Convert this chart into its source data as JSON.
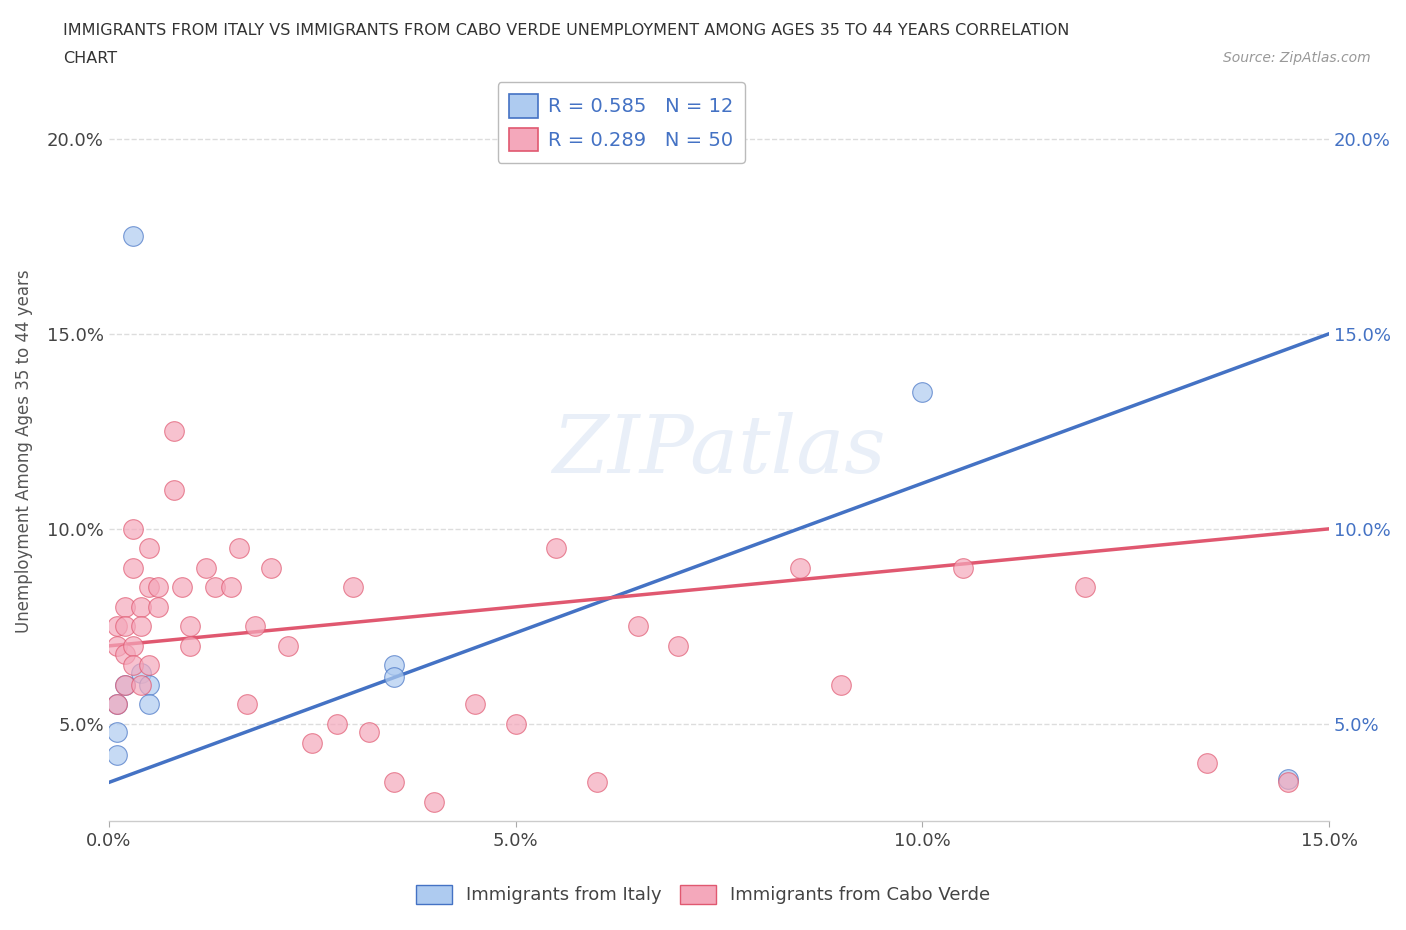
{
  "title_line1": "IMMIGRANTS FROM ITALY VS IMMIGRANTS FROM CABO VERDE UNEMPLOYMENT AMONG AGES 35 TO 44 YEARS CORRELATION",
  "title_line2": "CHART",
  "source": "Source: ZipAtlas.com",
  "ylabel": "Unemployment Among Ages 35 to 44 years",
  "watermark": "ZIPatlas",
  "italy_R": 0.585,
  "italy_N": 12,
  "caboverde_R": 0.289,
  "caboverde_N": 50,
  "italy_color": "#aecbf0",
  "italy_line_color": "#4472c4",
  "caboverde_color": "#f4a8bb",
  "caboverde_line_color": "#e05870",
  "xlim": [
    0,
    0.15
  ],
  "ylim": [
    0.025,
    0.215
  ],
  "xticks": [
    0.0,
    0.05,
    0.1,
    0.15
  ],
  "yticks": [
    0.05,
    0.1,
    0.15,
    0.2
  ],
  "italy_x": [
    0.001,
    0.001,
    0.001,
    0.002,
    0.003,
    0.004,
    0.005,
    0.005,
    0.035,
    0.035,
    0.1,
    0.145
  ],
  "italy_y": [
    0.055,
    0.048,
    0.042,
    0.06,
    0.175,
    0.063,
    0.06,
    0.055,
    0.065,
    0.062,
    0.135,
    0.036
  ],
  "caboverde_x": [
    0.001,
    0.001,
    0.001,
    0.002,
    0.002,
    0.002,
    0.002,
    0.003,
    0.003,
    0.003,
    0.003,
    0.004,
    0.004,
    0.004,
    0.005,
    0.005,
    0.005,
    0.006,
    0.006,
    0.008,
    0.008,
    0.009,
    0.01,
    0.01,
    0.012,
    0.013,
    0.015,
    0.016,
    0.017,
    0.018,
    0.02,
    0.022,
    0.025,
    0.028,
    0.03,
    0.032,
    0.035,
    0.04,
    0.045,
    0.05,
    0.055,
    0.06,
    0.065,
    0.07,
    0.085,
    0.09,
    0.105,
    0.12,
    0.135,
    0.145
  ],
  "caboverde_y": [
    0.07,
    0.075,
    0.055,
    0.08,
    0.06,
    0.075,
    0.068,
    0.1,
    0.09,
    0.07,
    0.065,
    0.08,
    0.075,
    0.06,
    0.095,
    0.085,
    0.065,
    0.085,
    0.08,
    0.125,
    0.11,
    0.085,
    0.075,
    0.07,
    0.09,
    0.085,
    0.085,
    0.095,
    0.055,
    0.075,
    0.09,
    0.07,
    0.045,
    0.05,
    0.085,
    0.048,
    0.035,
    0.03,
    0.055,
    0.05,
    0.095,
    0.035,
    0.075,
    0.07,
    0.09,
    0.06,
    0.09,
    0.085,
    0.04,
    0.035
  ],
  "background_color": "#ffffff",
  "grid_color": "#dddddd"
}
